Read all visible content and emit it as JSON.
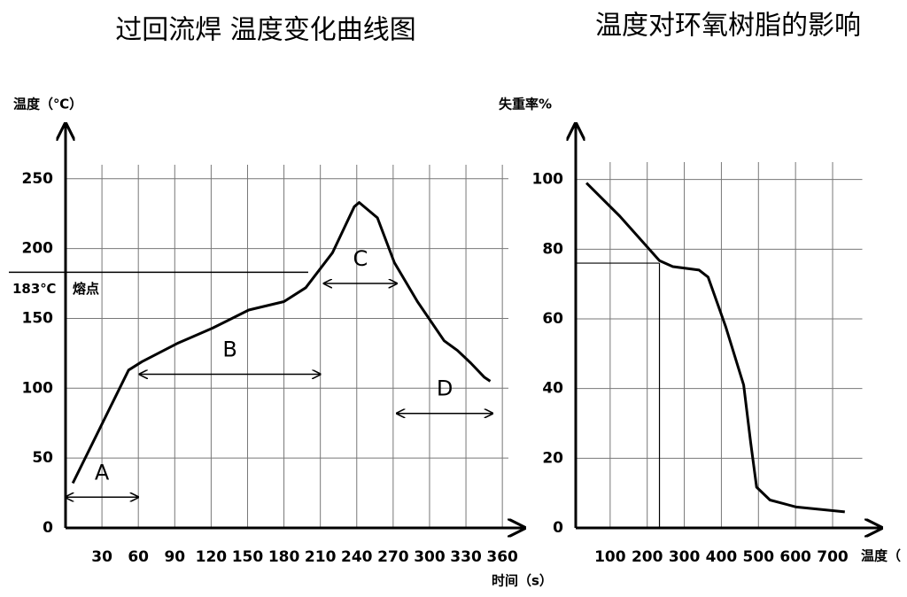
{
  "chart_data": [
    {
      "type": "line",
      "title": "过回流焊 温度变化曲线图",
      "y_label": "温度（℃）",
      "x_label": "时间（s）",
      "x": [
        6,
        52,
        63,
        92,
        121,
        151,
        180,
        198,
        220,
        238,
        242,
        257,
        271,
        290,
        312,
        323,
        334,
        345,
        350
      ],
      "values": [
        32,
        113,
        119,
        132,
        143,
        156,
        162,
        172,
        197,
        230,
        233,
        222,
        190,
        162,
        134,
        127,
        118,
        108,
        105
      ],
      "color": "#000000",
      "xlim": [
        0,
        365
      ],
      "ylim": [
        0,
        260
      ],
      "xticks": [
        30,
        60,
        90,
        120,
        150,
        180,
        210,
        240,
        270,
        300,
        330,
        360
      ],
      "yticks": [
        0,
        50,
        100,
        150,
        200,
        250
      ],
      "grid": true,
      "melting_point": {
        "value": 183,
        "label": "183℃",
        "text": "熔点",
        "x_end": 200
      },
      "phases": [
        {
          "label": "A",
          "x": [
            0,
            60
          ],
          "y": 22
        },
        {
          "label": "B",
          "x": [
            61,
            210
          ],
          "y": 110
        },
        {
          "label": "C",
          "x": [
            213,
            273
          ],
          "y": 175
        },
        {
          "label": "D",
          "x": [
            273,
            352
          ],
          "y": 82
        }
      ]
    },
    {
      "type": "line",
      "title": "温度对环氧树脂的影响",
      "y_label": "失重率%",
      "x_label": "温度（",
      "x": [
        36,
        126,
        233,
        269,
        340,
        364,
        412,
        460,
        479,
        495,
        531,
        602,
        733
      ],
      "values": [
        99,
        89.5,
        76.7,
        75,
        74,
        72,
        57.6,
        41,
        24.5,
        11.7,
        8,
        6,
        4.6
      ],
      "color": "#000000",
      "xlim": [
        0,
        780
      ],
      "ylim": [
        0,
        105
      ],
      "xticks": [
        100,
        200,
        300,
        400,
        500,
        600,
        700
      ],
      "yticks": [
        0,
        20,
        40,
        60,
        80,
        100
      ],
      "grid": true,
      "reference": {
        "x": 233,
        "y": 76
      }
    }
  ]
}
